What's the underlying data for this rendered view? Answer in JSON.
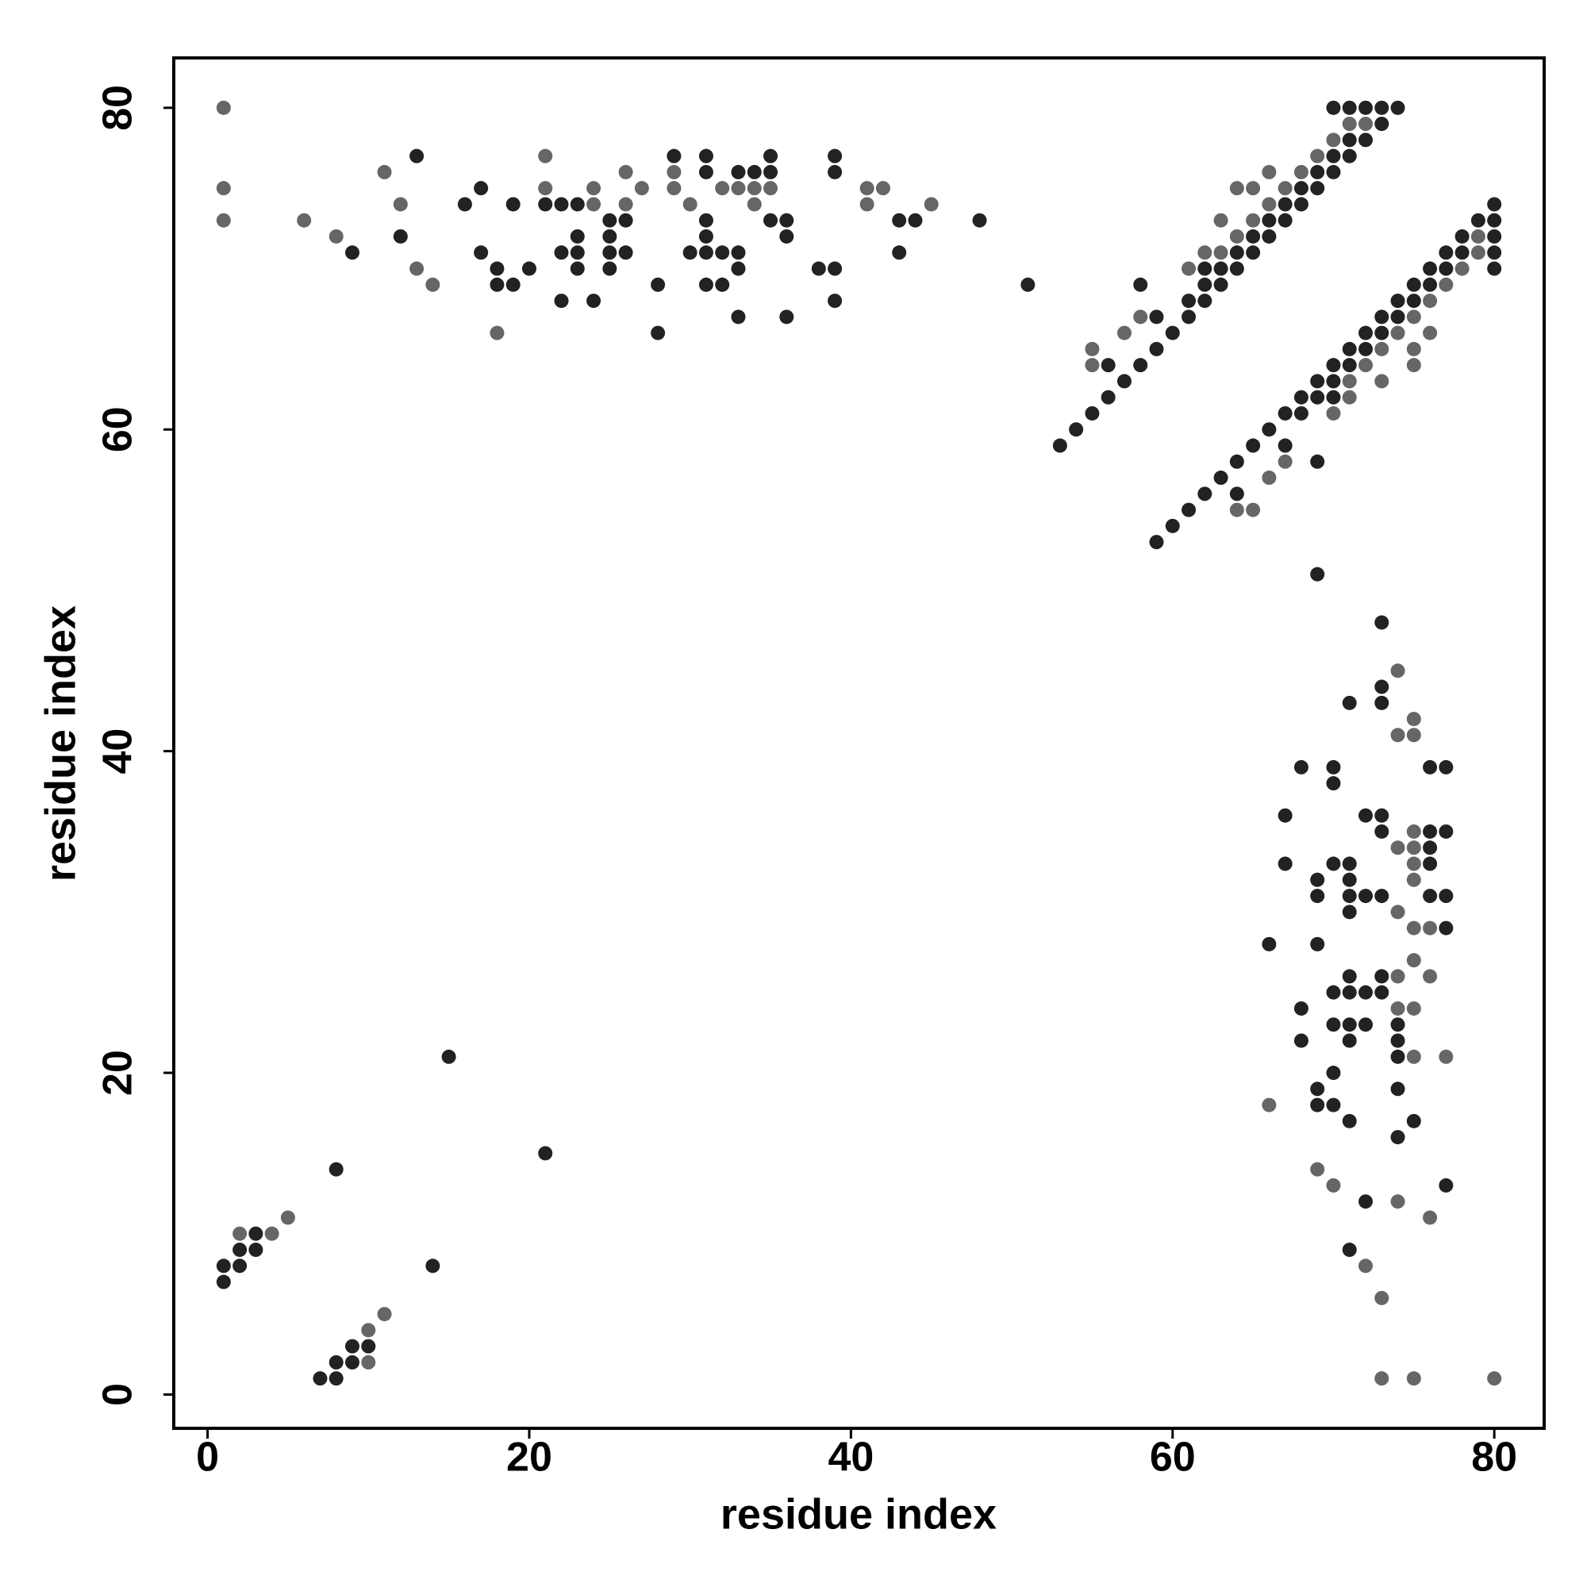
{
  "chart_data": {
    "type": "scatter",
    "xlabel": "residue index",
    "ylabel": "residue index",
    "xlim": [
      -2.1,
      83.1
    ],
    "ylim": [
      -2.1,
      83.1
    ],
    "xticks": [
      0,
      20,
      40,
      60,
      80
    ],
    "yticks": [
      0,
      20,
      40,
      60,
      80
    ],
    "grid": false,
    "series": [
      {
        "color": "#222222",
        "x": [
          9,
          12,
          13,
          16,
          17,
          17,
          18,
          18,
          19,
          19,
          20,
          21,
          22,
          22,
          22,
          23,
          23,
          23,
          23,
          24,
          25,
          25,
          25,
          25,
          26,
          26,
          28,
          28,
          29,
          30,
          31,
          31,
          31,
          31,
          31,
          31,
          32,
          32,
          33,
          33,
          33,
          33,
          34,
          35,
          35,
          35,
          36,
          36,
          36,
          38,
          39,
          39,
          39,
          39,
          43,
          43,
          44,
          48,
          51,
          53,
          54,
          55,
          56,
          56,
          57,
          58,
          58,
          59,
          59,
          60,
          61,
          61,
          62,
          62,
          62,
          63,
          63,
          64,
          64,
          65,
          65,
          66,
          66,
          67,
          67,
          68,
          68,
          69,
          69,
          70,
          70,
          70,
          71,
          71,
          71,
          72,
          72,
          73,
          73,
          74,
          59,
          60,
          61,
          62,
          63,
          64,
          64,
          65,
          66,
          67,
          67,
          68,
          68,
          69,
          69,
          69,
          70,
          70,
          70,
          71,
          71,
          72,
          72,
          73,
          73,
          74,
          74,
          75,
          75,
          76,
          76,
          77,
          77,
          78,
          78,
          79,
          80,
          80,
          80,
          80,
          80,
          69,
          73,
          73,
          73,
          71,
          68,
          70,
          70,
          76,
          77,
          67,
          72,
          73,
          73,
          76,
          77,
          76,
          67,
          70,
          71,
          76,
          69,
          71,
          69,
          71,
          72,
          73,
          76,
          77,
          71,
          77,
          66,
          69,
          71,
          73,
          70,
          71,
          72,
          73,
          68,
          70,
          71,
          72,
          74,
          68,
          71,
          74,
          74,
          70,
          69,
          74,
          69,
          70,
          71,
          75,
          74,
          77,
          72,
          71,
          1,
          1,
          2,
          2,
          3,
          3,
          8,
          15,
          21,
          14,
          7,
          8,
          8,
          9,
          9,
          10
        ],
        "y": [
          71,
          72,
          77,
          74,
          75,
          71,
          70,
          69,
          74,
          69,
          70,
          74,
          74,
          71,
          68,
          74,
          72,
          71,
          70,
          68,
          73,
          72,
          71,
          70,
          73,
          71,
          69,
          66,
          77,
          71,
          77,
          76,
          73,
          72,
          71,
          69,
          71,
          69,
          76,
          71,
          70,
          67,
          76,
          77,
          76,
          73,
          73,
          72,
          67,
          70,
          77,
          76,
          70,
          68,
          73,
          71,
          73,
          73,
          69,
          59,
          60,
          61,
          64,
          62,
          63,
          69,
          64,
          67,
          65,
          66,
          68,
          67,
          70,
          69,
          68,
          70,
          69,
          71,
          70,
          72,
          71,
          73,
          72,
          74,
          73,
          75,
          74,
          76,
          75,
          80,
          77,
          76,
          80,
          78,
          77,
          80,
          78,
          80,
          79,
          80,
          53,
          54,
          55,
          56,
          57,
          58,
          56,
          59,
          60,
          61,
          59,
          62,
          61,
          63,
          62,
          58,
          64,
          63,
          62,
          65,
          64,
          66,
          65,
          67,
          66,
          68,
          67,
          69,
          68,
          70,
          69,
          71,
          70,
          72,
          71,
          73,
          74,
          73,
          72,
          71,
          70,
          51,
          48,
          44,
          43,
          43,
          39,
          39,
          38,
          39,
          39,
          36,
          36,
          36,
          35,
          35,
          35,
          34,
          33,
          33,
          33,
          33,
          32,
          32,
          31,
          31,
          31,
          31,
          31,
          31,
          30,
          29,
          28,
          28,
          26,
          26,
          25,
          25,
          25,
          25,
          24,
          23,
          23,
          23,
          23,
          22,
          22,
          22,
          21,
          20,
          19,
          19,
          18,
          18,
          17,
          17,
          16,
          13,
          12,
          9,
          8,
          7,
          9,
          8,
          10,
          9,
          14,
          21,
          15,
          8,
          1,
          1,
          2,
          2,
          3,
          3
        ]
      },
      {
        "color": "#666666",
        "x": [
          1,
          1,
          1,
          6,
          8,
          11,
          12,
          13,
          14,
          18,
          21,
          21,
          24,
          24,
          26,
          26,
          27,
          29,
          29,
          30,
          32,
          33,
          34,
          34,
          35,
          41,
          41,
          42,
          45,
          55,
          55,
          57,
          58,
          61,
          62,
          63,
          63,
          64,
          64,
          65,
          65,
          66,
          66,
          67,
          68,
          69,
          70,
          71,
          72,
          64,
          65,
          66,
          67,
          70,
          71,
          71,
          72,
          73,
          73,
          74,
          75,
          75,
          75,
          76,
          76,
          77,
          78,
          79,
          79,
          74,
          75,
          74,
          75,
          75,
          74,
          75,
          75,
          75,
          74,
          75,
          76,
          75,
          74,
          76,
          74,
          75,
          75,
          77,
          66,
          69,
          70,
          74,
          76,
          72,
          73,
          73,
          75,
          80,
          2,
          4,
          5,
          10,
          10,
          11
        ],
        "y": [
          80,
          75,
          73,
          73,
          72,
          76,
          74,
          70,
          69,
          66,
          77,
          75,
          75,
          74,
          76,
          74,
          75,
          76,
          75,
          74,
          75,
          75,
          75,
          74,
          75,
          75,
          74,
          75,
          74,
          65,
          64,
          66,
          67,
          70,
          71,
          73,
          71,
          75,
          72,
          75,
          73,
          76,
          74,
          75,
          76,
          77,
          78,
          79,
          79,
          55,
          55,
          57,
          58,
          61,
          63,
          62,
          64,
          65,
          63,
          66,
          67,
          65,
          64,
          68,
          66,
          69,
          70,
          72,
          71,
          45,
          42,
          41,
          41,
          35,
          34,
          34,
          33,
          32,
          30,
          29,
          29,
          27,
          26,
          26,
          24,
          24,
          21,
          21,
          18,
          14,
          13,
          12,
          11,
          8,
          6,
          1,
          1,
          1,
          10,
          10,
          11,
          2,
          4,
          5
        ]
      }
    ]
  }
}
